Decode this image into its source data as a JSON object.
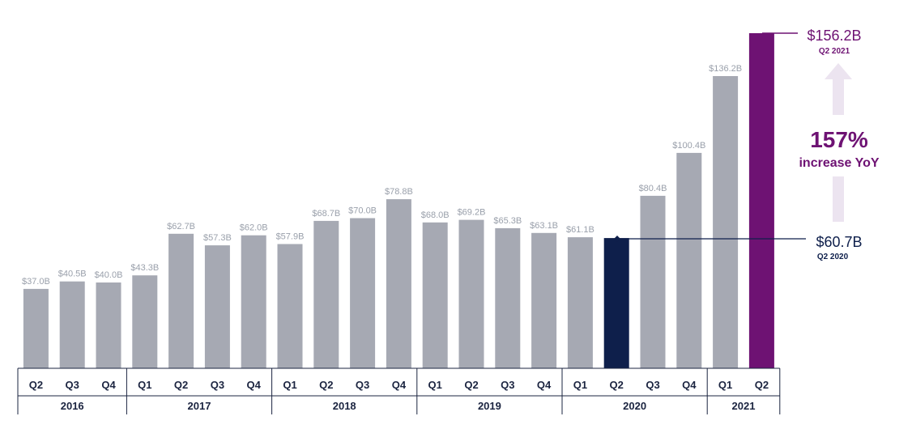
{
  "chart_data": {
    "type": "bar",
    "categories": [
      "Q2",
      "Q3",
      "Q4",
      "Q1",
      "Q2",
      "Q3",
      "Q4",
      "Q1",
      "Q2",
      "Q3",
      "Q4",
      "Q1",
      "Q2",
      "Q3",
      "Q4",
      "Q1",
      "Q2",
      "Q3",
      "Q4",
      "Q1",
      "Q2"
    ],
    "years": [
      {
        "label": "2016",
        "count": 3
      },
      {
        "label": "2017",
        "count": 4
      },
      {
        "label": "2018",
        "count": 4
      },
      {
        "label": "2019",
        "count": 4
      },
      {
        "label": "2020",
        "count": 4
      },
      {
        "label": "2021",
        "count": 2
      }
    ],
    "values": [
      37.0,
      40.5,
      40.0,
      43.3,
      62.7,
      57.3,
      62.0,
      57.9,
      68.7,
      70.0,
      78.8,
      68.0,
      69.2,
      65.3,
      63.1,
      61.1,
      60.7,
      80.4,
      100.4,
      136.2,
      156.2
    ],
    "labels": [
      "$37.0B",
      "$40.5B",
      "$40.0B",
      "$43.3B",
      "$62.7B",
      "$57.3B",
      "$62.0B",
      "$57.9B",
      "$68.7B",
      "$70.0B",
      "$78.8B",
      "$68.0B",
      "$69.2B",
      "$65.3B",
      "$63.1B",
      "$61.1B",
      "",
      "$80.4B",
      "$100.4B",
      "$136.2B",
      ""
    ],
    "ylim": [
      0,
      156.2
    ],
    "grid": false,
    "colors": {
      "default": "#a6a9b3",
      "highlight_q2_2020": "#0e1f4b",
      "highlight_q2_2021": "#6e1273",
      "arrow": "#ece4f0",
      "axis_text": "#1b2440",
      "label_text": "#9aa0ab"
    },
    "highlights": {
      "q2_2020_index": 16,
      "q2_2021_index": 20
    }
  },
  "callouts": {
    "top_value": "$156.2B",
    "top_period": "Q2 2021",
    "mid_value": "$60.7B",
    "mid_period": "Q2 2020",
    "increase_pct": "157%",
    "increase_text": "increase YoY"
  }
}
